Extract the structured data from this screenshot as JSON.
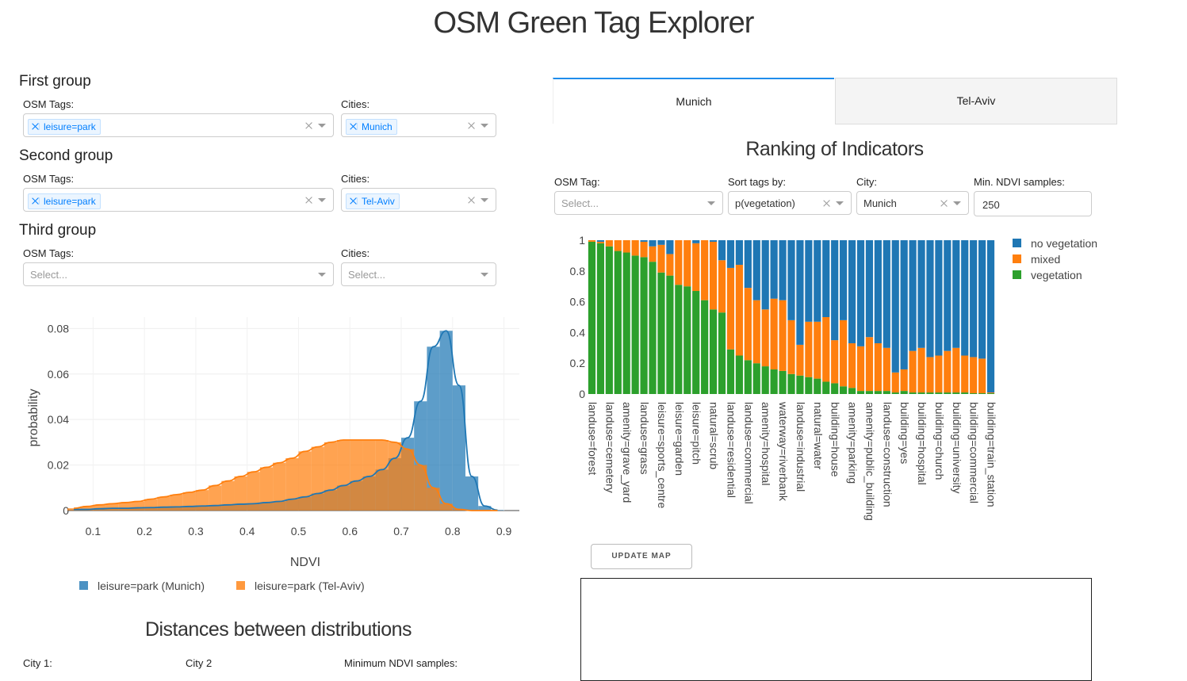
{
  "header": {
    "title": "OSM Green Tag Explorer"
  },
  "groups": [
    {
      "title": "First group",
      "tags_label": "OSM Tags:",
      "tags": [
        "leisure=park"
      ],
      "cities_label": "Cities:",
      "cities": [
        "Munich"
      ]
    },
    {
      "title": "Second group",
      "tags_label": "OSM Tags:",
      "tags": [
        "leisure=park"
      ],
      "cities_label": "Cities:",
      "cities": [
        "Tel-Aviv"
      ]
    },
    {
      "title": "Third group",
      "tags_label": "OSM Tags:",
      "tags_placeholder": "Select...",
      "cities_label": "Cities:",
      "cities_placeholder": "Select..."
    }
  ],
  "distances": {
    "title": "Distances between distributions",
    "city1_label": "City 1:",
    "city2_label": "City 2",
    "min_label": "Minimum NDVI samples:"
  },
  "tabs": [
    "Munich",
    "Tel-Aviv"
  ],
  "ranking": {
    "title": "Ranking of Indicators",
    "controls": [
      {
        "label": "OSM Tag:",
        "placeholder": "Select..."
      },
      {
        "label": "Sort tags by:",
        "value": "p(vegetation)"
      },
      {
        "label": "City:",
        "value": "Munich"
      },
      {
        "label": "Min. NDVI samples:",
        "value": 250
      }
    ],
    "button": "UPDATE MAP"
  },
  "chart_data": [
    {
      "type": "histogram",
      "xlabel": "NDVI",
      "ylabel": "probability",
      "bins": [
        0.05,
        0.075,
        0.1,
        0.125,
        0.15,
        0.175,
        0.2,
        0.225,
        0.25,
        0.275,
        0.3,
        0.325,
        0.35,
        0.375,
        0.4,
        0.425,
        0.45,
        0.475,
        0.5,
        0.525,
        0.55,
        0.575,
        0.6,
        0.625,
        0.65,
        0.675,
        0.7,
        0.725,
        0.75,
        0.775,
        0.8,
        0.825,
        0.85,
        0.875,
        0.9
      ],
      "series": [
        {
          "name": "leisure=park (Munich)",
          "color": "#1f77b4",
          "values": [
            0.0005,
            0.0005,
            0.0008,
            0.001,
            0.001,
            0.0012,
            0.0013,
            0.0015,
            0.0016,
            0.0018,
            0.002,
            0.0022,
            0.0025,
            0.0028,
            0.003,
            0.0035,
            0.004,
            0.005,
            0.006,
            0.0075,
            0.009,
            0.011,
            0.013,
            0.015,
            0.018,
            0.023,
            0.032,
            0.048,
            0.072,
            0.079,
            0.055,
            0.015,
            0.002,
            0.0002
          ]
        },
        {
          "name": "leisure=park (Tel-Aviv)",
          "color": "#ff7f0e",
          "values": [
            0.001,
            0.0018,
            0.0025,
            0.003,
            0.0035,
            0.004,
            0.005,
            0.006,
            0.007,
            0.008,
            0.009,
            0.011,
            0.013,
            0.015,
            0.017,
            0.019,
            0.021,
            0.023,
            0.026,
            0.028,
            0.03,
            0.031,
            0.031,
            0.031,
            0.031,
            0.03,
            0.027,
            0.02,
            0.01,
            0.003,
            0.0005,
            0,
            0,
            0
          ]
        }
      ],
      "xlim": [
        0.05,
        0.93
      ],
      "ylim": [
        0,
        0.085
      ],
      "xticks": [
        0.1,
        0.2,
        0.3,
        0.4,
        0.5,
        0.6,
        0.7,
        0.8,
        0.9
      ],
      "yticks": [
        0,
        0.02,
        0.04,
        0.06,
        0.08
      ],
      "grid": true
    },
    {
      "type": "stacked_bar",
      "categories": [
        "landuse=forest",
        null,
        "landuse=cemetery",
        null,
        "amenity=grave_yard",
        null,
        "landuse=grass",
        null,
        "leisure=sports_centre",
        null,
        "leisure=garden",
        null,
        "leisure=pitch",
        null,
        "natural=scrub",
        null,
        "landuse=residential",
        null,
        "landuse=commercial",
        null,
        "amenity=hospital",
        null,
        "waterway=riverbank",
        null,
        "landuse=industrial",
        null,
        "natural=water",
        null,
        "building=house",
        null,
        "amenity=parking",
        null,
        "amenity=public_building",
        null,
        "landuse=construction",
        null,
        "building=yes",
        null,
        "building=hospital",
        null,
        "building=church",
        null,
        "building=university",
        null,
        "building=commercial",
        null,
        "building=train_station"
      ],
      "series": [
        {
          "name": "no vegetation",
          "color": "#1f77b4",
          "values": [
            0,
            0.01,
            0,
            0,
            0,
            0,
            0.01,
            0.04,
            0.03,
            0.09,
            0,
            0,
            0.02,
            0,
            0.01,
            0.13,
            0.18,
            0.16,
            0.31,
            0.39,
            0.45,
            0.38,
            0.39,
            0.52,
            0.68,
            0.53,
            0.53,
            0.5,
            0.65,
            0.52,
            0.67,
            0.69,
            0.63,
            0.67,
            0.7,
            0.86,
            0.84,
            0.72,
            0.7,
            0.76,
            0.75,
            0.72,
            0.7,
            0.75,
            0.76,
            0.77,
            0.99
          ]
        },
        {
          "name": "mixed",
          "color": "#ff7f0e",
          "values": [
            0.01,
            0.01,
            0.04,
            0.07,
            0.08,
            0.1,
            0.1,
            0.1,
            0.18,
            0.14,
            0.29,
            0.3,
            0.31,
            0.39,
            0.44,
            0.34,
            0.53,
            0.59,
            0.47,
            0.41,
            0.37,
            0.46,
            0.46,
            0.35,
            0.2,
            0.36,
            0.37,
            0.42,
            0.28,
            0.43,
            0.29,
            0.29,
            0.35,
            0.31,
            0.28,
            0.13,
            0.14,
            0.27,
            0.29,
            0.23,
            0.24,
            0.27,
            0.29,
            0.24,
            0.235,
            0.225,
            0.005
          ]
        },
        {
          "name": "vegetation",
          "color": "#2ca02c",
          "values": [
            0.99,
            0.98,
            0.96,
            0.93,
            0.92,
            0.9,
            0.89,
            0.86,
            0.79,
            0.77,
            0.71,
            0.7,
            0.67,
            0.61,
            0.55,
            0.53,
            0.29,
            0.25,
            0.22,
            0.2,
            0.18,
            0.16,
            0.15,
            0.13,
            0.12,
            0.11,
            0.1,
            0.08,
            0.07,
            0.05,
            0.04,
            0.02,
            0.02,
            0.02,
            0.02,
            0.01,
            0.02,
            0.01,
            0.01,
            0.01,
            0.01,
            0.01,
            0.01,
            0.01,
            0.005,
            0.005,
            0.005
          ]
        }
      ],
      "ylim": [
        0,
        1
      ],
      "yticks": [
        0,
        0.2,
        0.4,
        0.6,
        0.8,
        1
      ],
      "legend": "right"
    }
  ]
}
